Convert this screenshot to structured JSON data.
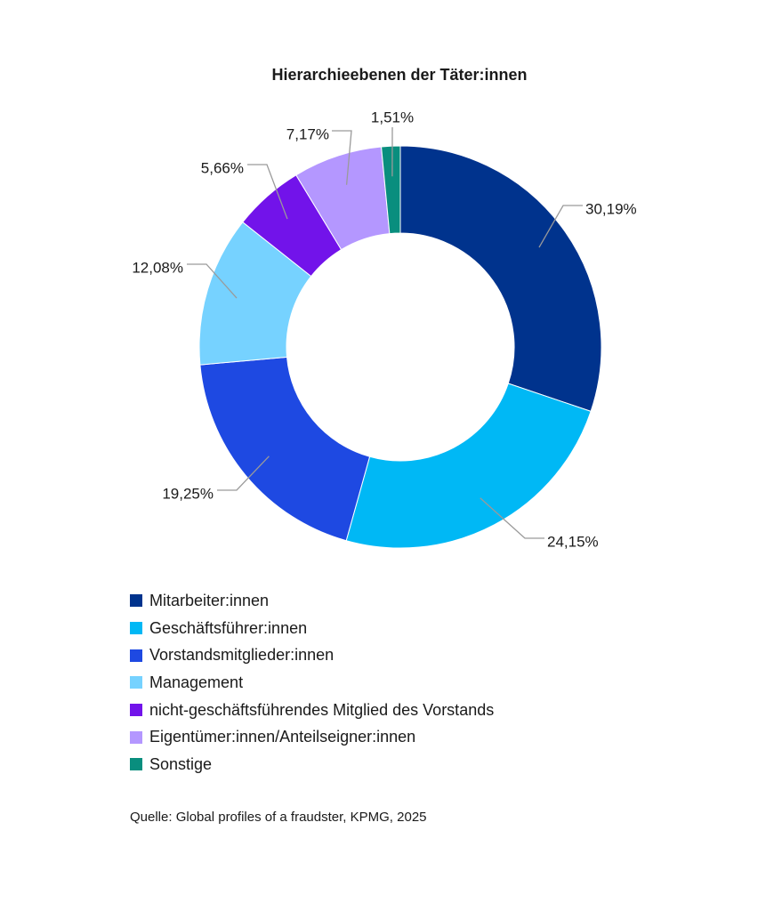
{
  "chart_data": {
    "type": "pie",
    "variant": "donut",
    "title": "Hierarchieebenen der Täter:innen",
    "slices": [
      {
        "label": "Mitarbeiter:innen",
        "value": 30.19,
        "value_label": "30,19%",
        "color": "#00338D"
      },
      {
        "label": "Geschäftsführer:innen",
        "value": 24.15,
        "value_label": "24,15%",
        "color": "#00B8F5"
      },
      {
        "label": "Vorstandsmitglieder:innen",
        "value": 19.25,
        "value_label": "19,25%",
        "color": "#1E49E2"
      },
      {
        "label": "Management",
        "value": 12.08,
        "value_label": "12,08%",
        "color": "#76D2FF"
      },
      {
        "label": "nicht-geschäftsführendes Mitglied des Vorstands",
        "value": 5.66,
        "value_label": "5,66%",
        "color": "#7213EA"
      },
      {
        "label": "Eigentümer:innen/Anteilseigner:innen",
        "value": 7.17,
        "value_label": "7,17%",
        "color": "#B497FF"
      },
      {
        "label": "Sonstige",
        "value": 1.51,
        "value_label": "1,51%",
        "color": "#098E7E"
      }
    ],
    "legend_position": "bottom-left"
  },
  "source": "Quelle: Global profiles of a fraudster, KPMG, 2025"
}
